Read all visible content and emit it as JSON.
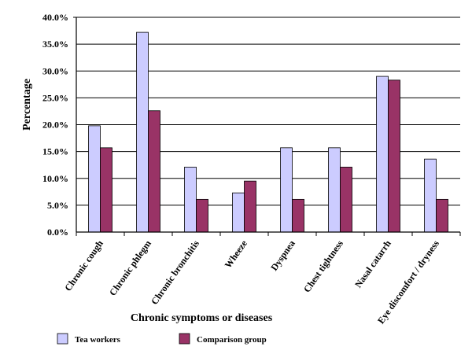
{
  "chart_data": {
    "type": "bar",
    "title": "",
    "xlabel": "Chronic symptoms or diseases",
    "ylabel": "Percentage",
    "ylim": [
      0,
      40
    ],
    "y_ticks": [
      "0.0%",
      "5.0%",
      "10.0%",
      "15.0%",
      "20.0%",
      "25.0%",
      "30.0%",
      "35.0%",
      "40.0%"
    ],
    "grid": "horizontal",
    "legend_position": "bottom",
    "categories": [
      "Chronic cough",
      "Chronic phlegm",
      "Chronic bronchitis",
      "Wheeze",
      "Dyspnea",
      "Chest tightness",
      "Nasal catarrh",
      "Eye discomfort / dryness"
    ],
    "series": [
      {
        "name": "Tea workers",
        "color": "#ccccff",
        "values": [
          19.8,
          37.2,
          12.1,
          7.3,
          15.7,
          15.7,
          29.0,
          13.6
        ]
      },
      {
        "name": "Comparison group",
        "color": "#993366",
        "values": [
          15.7,
          22.6,
          6.1,
          9.5,
          6.1,
          12.1,
          28.3,
          6.1
        ]
      }
    ]
  }
}
